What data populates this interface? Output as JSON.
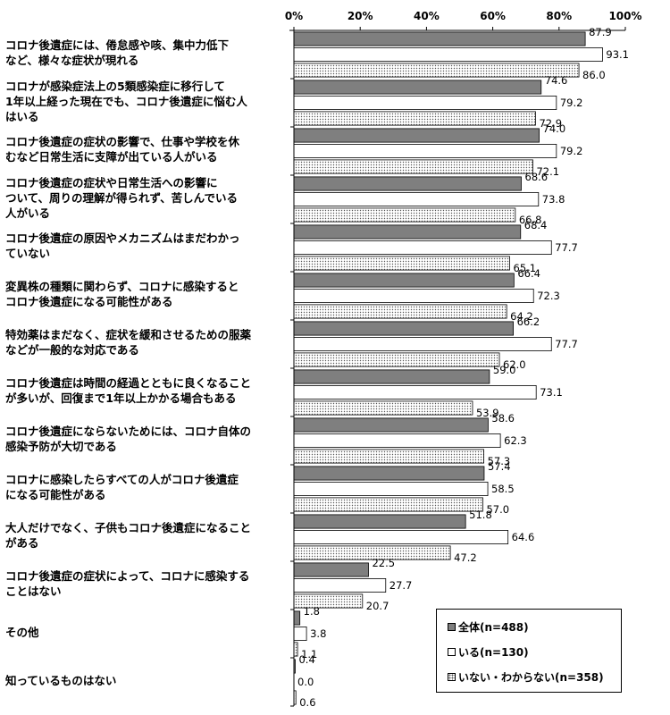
{
  "chart_data": {
    "type": "bar",
    "orientation": "horizontal",
    "title": "",
    "xlabel": "",
    "ylabel": "",
    "xlim": [
      0,
      100
    ],
    "x_tick_labels": [
      "0%",
      "20%",
      "40%",
      "60%",
      "80%",
      "100%"
    ],
    "grid": false,
    "legend_position": "bottom-right",
    "categories": [
      "コロナ後遺症には、倦怠感や咳、集中力低下\nなど、様々な症状が現れる",
      "コロナが感染症法上の5類感染症に移行して\n1年以上経った現在でも、コロナ後遺症に悩む人\nはいる",
      "コロナ後遺症の症状の影響で、仕事や学校を休\nむなど日常生活に支障が出ている人がいる",
      "コロナ後遺症の症状や日常生活への影響に\nついて、周りの理解が得られず、苦しんでいる\n人がいる",
      "コロナ後遺症の原因やメカニズムはまだわかっ\nていない",
      "変異株の種類に関わらず、コロナに感染すると\nコロナ後遺症になる可能性がある",
      "特効薬はまだなく、症状を緩和させるための服薬\nなどが一般的な対応である",
      "コロナ後遺症は時間の経過とともに良くなること\nが多いが、回復まで1年以上かかる場合もある",
      "コロナ後遺症にならないためには、コロナ自体の\n感染予防が大切である",
      "コロナに感染したらすべての人がコロナ後遺症\nになる可能性がある",
      "大人だけでなく、子供もコロナ後遺症になること\nがある",
      "コロナ後遺症の症状によって、コロナに感染する\nことはない",
      "その他",
      "知っているものはない"
    ],
    "series": [
      {
        "name": "全体(n=488)",
        "fill": "#7f7f7f",
        "values": [
          87.9,
          74.6,
          74.0,
          68.6,
          68.4,
          66.4,
          66.2,
          59.0,
          58.6,
          57.4,
          51.8,
          22.5,
          1.8,
          0.4
        ],
        "labels": [
          "87.9",
          "74.6",
          "74.0",
          "68.6",
          "68.4",
          "66.4",
          "66.2",
          "59.0",
          "58.6",
          "57.4",
          "51.8",
          "22.5",
          "1.8",
          "0.4"
        ]
      },
      {
        "name": "いる(n=130)",
        "fill": "#ffffff",
        "values": [
          93.1,
          79.2,
          79.2,
          73.8,
          77.7,
          72.3,
          77.7,
          73.1,
          62.3,
          58.5,
          64.6,
          27.7,
          3.8,
          0.0
        ],
        "labels": [
          "93.1",
          "79.2",
          "79.2",
          "73.8",
          "77.7",
          "72.3",
          "77.7",
          "73.1",
          "62.3",
          "58.5",
          "64.6",
          "27.7",
          "3.8",
          "0.0"
        ]
      },
      {
        "name": "いない・わからない(n=358)",
        "fill": "dotted",
        "values": [
          86.0,
          72.9,
          72.1,
          66.8,
          65.1,
          64.2,
          62.0,
          53.9,
          57.3,
          57.0,
          47.2,
          20.7,
          1.1,
          0.6
        ],
        "labels": [
          "86.0",
          "72.9",
          "72.1",
          "66.8",
          "65.1",
          "64.2",
          "62.0",
          "53.9",
          "57.3",
          "57.0",
          "47.2",
          "20.7",
          "1.1",
          "0.6"
        ]
      }
    ]
  }
}
